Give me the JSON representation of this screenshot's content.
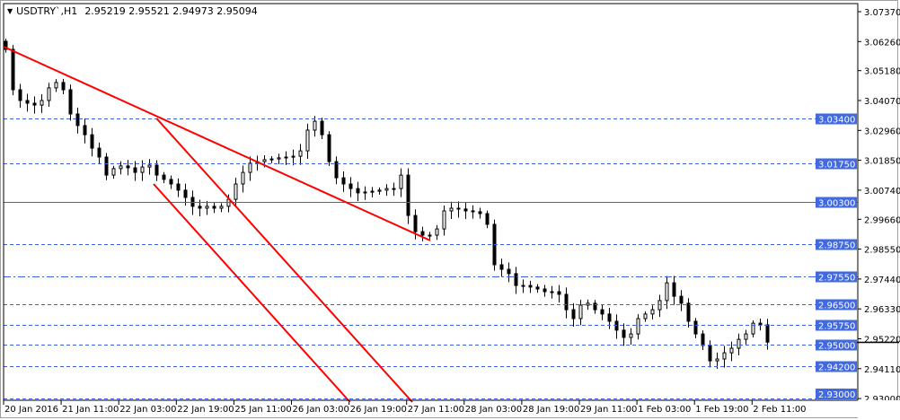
{
  "header": {
    "symbol": "USDTRY`,H1",
    "ohlc": "2.95219 2.95521 2.94973 2.95094",
    "menu_icon": "triangle-down-icon"
  },
  "chart_data": {
    "type": "candlestick",
    "symbol": "USDTRY`",
    "timeframe": "H1",
    "ylim": [
      2.929,
      3.0775
    ],
    "y_ticks": [
      "3.07370",
      "3.06260",
      "3.05180",
      "3.04070",
      "3.02960",
      "3.01850",
      "3.00740",
      "2.99660",
      "2.98550",
      "2.97440",
      "2.96330",
      "2.95220",
      "2.94110",
      "2.93000"
    ],
    "x_ticks": [
      "20 Jan 2016",
      "21 Jan 11:00",
      "22 Jan 03:00",
      "22 Jan 19:00",
      "25 Jan 11:00",
      "26 Jan 03:00",
      "26 Jan 19:00",
      "27 Jan 11:00",
      "28 Jan 03:00",
      "28 Jan 19:00",
      "29 Jan 11:00",
      "1 Feb 03:00",
      "1 Feb 19:00",
      "2 Feb 11:00"
    ],
    "closes": [
      3.0597,
      3.0447,
      3.0407,
      3.0397,
      3.039,
      3.0407,
      3.0454,
      3.0474,
      3.0447,
      3.0357,
      3.0314,
      3.028,
      3.023,
      3.0197,
      3.013,
      3.0154,
      3.0164,
      3.0157,
      3.014,
      3.016,
      3.0167,
      3.013,
      3.0114,
      3.0097,
      3.0074,
      3.0047,
      3.0014,
      3.0007,
      3.0014,
      3.0007,
      3.0014,
      3.004,
      3.0097,
      3.014,
      3.0174,
      3.018,
      3.0187,
      3.019,
      3.0194,
      3.0197,
      3.02,
      3.022,
      3.0297,
      3.033,
      3.028,
      3.018,
      3.012,
      3.0097,
      3.008,
      3.0064,
      3.0067,
      3.007,
      3.0074,
      3.008,
      3.008,
      3.013,
      2.998,
      2.992,
      2.9907,
      2.9907,
      2.993,
      2.9997,
      3.0007,
      3.0004,
      2.9997,
      2.9994,
      2.9987,
      2.9947,
      2.9797,
      2.978,
      2.9764,
      2.972,
      2.972,
      2.9714,
      2.9707,
      2.9697,
      2.9697,
      2.9687,
      2.963,
      2.9597,
      2.9647,
      2.9654,
      2.963,
      2.9614,
      2.9587,
      2.9554,
      2.9527,
      2.954,
      2.9597,
      2.9614,
      2.963,
      2.9664,
      2.973,
      2.968,
      2.9654,
      2.9587,
      2.954,
      2.9497,
      2.944,
      2.9447,
      2.947,
      2.9487,
      2.952,
      2.954,
      2.958,
      2.9574,
      2.95094
    ],
    "levels": [
      {
        "label": "3.03400",
        "price": 3.034,
        "style": "dash"
      },
      {
        "label": "3.01750",
        "price": 3.0175,
        "style": "dash"
      },
      {
        "label": "3.00300",
        "price": 3.003,
        "style": "solid"
      },
      {
        "label": "2.98750",
        "price": 2.9875,
        "style": "dash"
      },
      {
        "label": "2.97550",
        "price": 2.9755,
        "style": "dashdot"
      },
      {
        "label": "2.96500",
        "price": 2.965,
        "style": "dash"
      },
      {
        "label": "2.95750",
        "price": 2.9575,
        "style": "dash"
      },
      {
        "label": "2.95000",
        "price": 2.95,
        "style": "dash"
      },
      {
        "label": "2.94200",
        "price": 2.942,
        "style": "dash"
      },
      {
        "label": "2.93000",
        "price": 2.93,
        "style": "dash"
      }
    ],
    "current_price": 2.95094,
    "trendlines": [
      {
        "from": {
          "bar": 0,
          "price": 3.0607
        },
        "to": {
          "bar": 118.75,
          "price": 2.9887
        }
      },
      {
        "from": {
          "bar": 42.6,
          "price": 3.034
        },
        "to": {
          "bar": 113.75,
          "price": 2.9287
        }
      },
      {
        "from": {
          "bar": 41.75,
          "price": 3.0097
        },
        "to": {
          "bar": 96.4,
          "price": 2.9287
        }
      }
    ],
    "colors": {
      "candle": "#000000",
      "trendline": "#ff0000",
      "level": "#3b5fe0",
      "label_bg": "#4169e1",
      "label_text": "#ffffff",
      "grid": "#a9a9a9"
    }
  }
}
